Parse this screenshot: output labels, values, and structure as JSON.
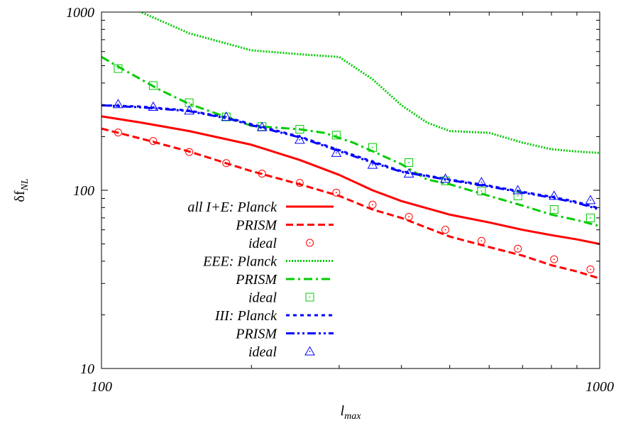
{
  "chart_data": {
    "type": "line",
    "x_scale": "log",
    "y_scale": "log",
    "xlim": [
      100,
      1000
    ],
    "ylim": [
      10,
      1000
    ],
    "grid": false,
    "legend_position": "bottom-left",
    "xlabel_main": "l",
    "xlabel_sub": "max",
    "ylabel_main": "δf",
    "ylabel_sub": "NL",
    "x_ticks": [
      100,
      1000
    ],
    "x_tick_labels": [
      "100",
      "1000"
    ],
    "y_ticks": [
      10,
      100,
      1000
    ],
    "y_tick_labels": [
      "10",
      "100",
      "1000"
    ],
    "series": [
      {
        "name": "all I+E: Planck",
        "color": "#ff0000",
        "style": "solid",
        "marker": "none",
        "x": [
          100,
          120,
          150,
          200,
          250,
          300,
          350,
          400,
          500,
          600,
          700,
          800,
          900,
          1000
        ],
        "y": [
          260,
          240,
          215,
          180,
          148,
          122,
          100,
          87,
          73,
          66,
          60,
          56,
          53,
          50
        ]
      },
      {
        "name": "PRISM",
        "color": "#ff0000",
        "style": "dashed",
        "marker": "none",
        "x": [
          100,
          120,
          150,
          200,
          250,
          300,
          350,
          400,
          500,
          600,
          700,
          800,
          900,
          1000
        ],
        "y": [
          222,
          195,
          165,
          128,
          108,
          93,
          78,
          70,
          55,
          48,
          43,
          38,
          35,
          32
        ]
      },
      {
        "name": "ideal",
        "color": "#ff0000",
        "style": "none",
        "marker": "circle",
        "x": [
          108,
          127,
          150,
          178,
          210,
          250,
          296,
          350,
          414,
          490,
          579,
          685,
          810,
          958
        ],
        "y": [
          211,
          189,
          164,
          142,
          124,
          110,
          97,
          83,
          71,
          60,
          52,
          47,
          41,
          36
        ]
      },
      {
        "name": "EEE: Planck",
        "color": "#00cc00",
        "style": "dotted",
        "marker": "none",
        "x": [
          100,
          120,
          150,
          200,
          250,
          300,
          350,
          400,
          450,
          500,
          600,
          700,
          800,
          900,
          1000
        ],
        "y": [
          1300,
          1000,
          760,
          610,
          580,
          560,
          420,
          300,
          240,
          215,
          210,
          185,
          170,
          165,
          162
        ]
      },
      {
        "name": "PRISM",
        "color": "#00cc00",
        "style": "dashdot",
        "marker": "none",
        "x": [
          100,
          110,
          130,
          150,
          180,
          200,
          250,
          280,
          320,
          360,
          400,
          450,
          500,
          600,
          700,
          800,
          900,
          1000
        ],
        "y": [
          560,
          480,
          370,
          305,
          255,
          230,
          220,
          210,
          185,
          160,
          140,
          115,
          108,
          93,
          82,
          73,
          68,
          63
        ]
      },
      {
        "name": "ideal",
        "color": "#00cc00",
        "style": "none",
        "marker": "square",
        "x": [
          108,
          127,
          150,
          178,
          210,
          250,
          296,
          350,
          414,
          490,
          579,
          685,
          810,
          958
        ],
        "y": [
          482,
          387,
          310,
          258,
          228,
          220,
          204,
          174,
          143,
          113,
          99,
          93,
          78,
          70
        ]
      },
      {
        "name": "III: Planck",
        "color": "#0000ff",
        "style": "dotted-dense",
        "marker": "none",
        "x": [
          100,
          120,
          150,
          180,
          200,
          250,
          300,
          350,
          400,
          500,
          600,
          700,
          800,
          900,
          1000
        ],
        "y": [
          300,
          295,
          280,
          255,
          235,
          200,
          168,
          145,
          128,
          115,
          106,
          98,
          92,
          86,
          79
        ]
      },
      {
        "name": "PRISM",
        "color": "#0000ff",
        "style": "dashdotdot",
        "marker": "none",
        "x": [
          100,
          120,
          150,
          180,
          200,
          250,
          300,
          350,
          400,
          500,
          600,
          700,
          800,
          900,
          1000
        ],
        "y": [
          300,
          292,
          278,
          252,
          232,
          198,
          166,
          143,
          127,
          114,
          105,
          97,
          91,
          85,
          78
        ]
      },
      {
        "name": "ideal",
        "color": "#0000ff",
        "style": "none",
        "marker": "triangle",
        "x": [
          108,
          127,
          150,
          178,
          210,
          250,
          296,
          350,
          414,
          490,
          579,
          685,
          810,
          958
        ],
        "y": [
          304,
          294,
          280,
          258,
          226,
          192,
          162,
          139,
          124,
          116,
          111,
          100,
          93,
          88
        ]
      }
    ],
    "legend": [
      {
        "label": "all I+E: Planck",
        "series": 0
      },
      {
        "label": "PRISM",
        "series": 1
      },
      {
        "label": "ideal",
        "series": 2
      },
      {
        "label": "EEE: Planck",
        "series": 3
      },
      {
        "label": "PRISM",
        "series": 4
      },
      {
        "label": "ideal",
        "series": 5
      },
      {
        "label": "III: Planck",
        "series": 6
      },
      {
        "label": "PRISM",
        "series": 7
      },
      {
        "label": "ideal",
        "series": 8
      }
    ]
  }
}
